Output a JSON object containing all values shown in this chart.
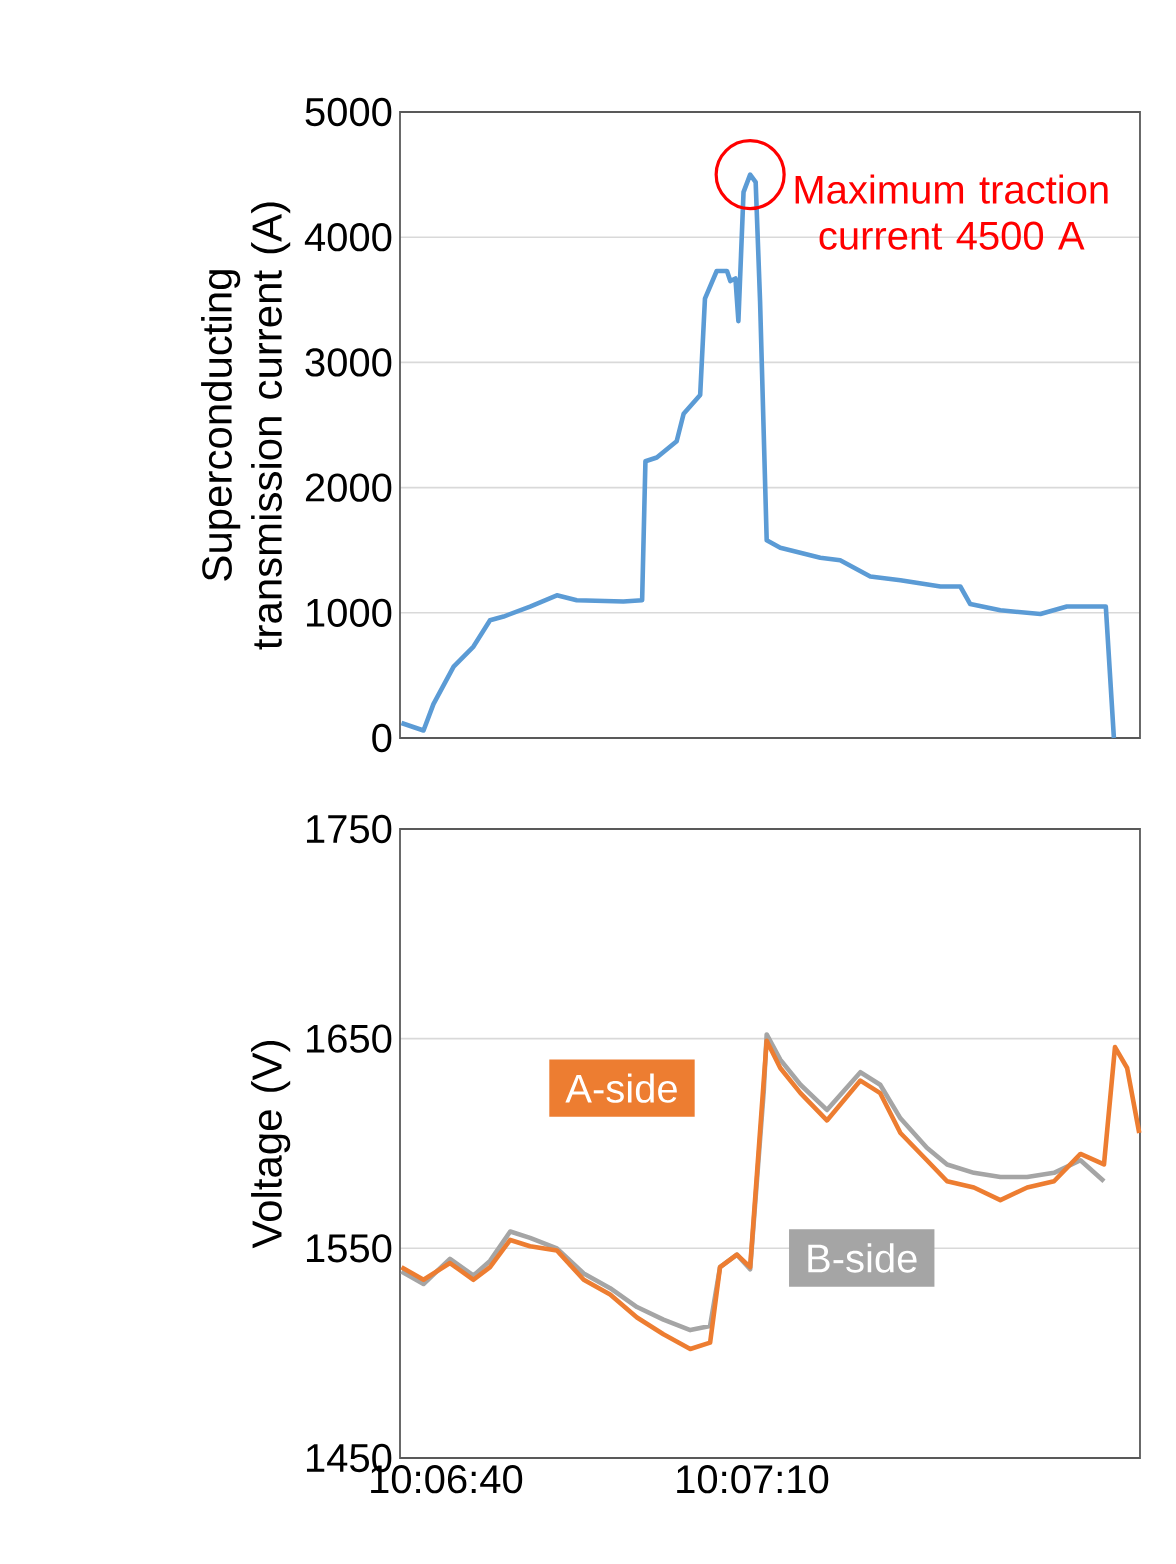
{
  "chart_data": [
    {
      "type": "line",
      "ylabel": "Superconducting transmission current (A)",
      "x": [
        10.1099,
        10.1105,
        10.11077,
        10.11132,
        10.11186,
        10.11231,
        10.11268,
        10.1134,
        10.11413,
        10.11467,
        10.11594,
        10.11645,
        10.11654,
        10.11685,
        10.11739,
        10.11758,
        10.11803,
        10.11816,
        10.11848,
        10.11876,
        10.11885,
        10.11899,
        10.11907,
        10.11921,
        10.11939,
        10.11954,
        10.11966,
        10.11984,
        10.12021,
        10.1213,
        10.12184,
        10.12266,
        10.12348,
        10.12457,
        10.12511,
        10.12538,
        10.1262,
        10.12729,
        10.12801,
        10.12907,
        10.12929
      ],
      "series": [
        {
          "color": "#5b9bd5",
          "values": [
            120,
            60,
            270,
            570,
            730,
            940,
            970,
            1050,
            1140,
            1100,
            1090,
            1100,
            2210,
            2240,
            2370,
            2590,
            2740,
            3510,
            3730,
            3730,
            3650,
            3670,
            3330,
            4360,
            4500,
            4440,
            3490,
            1580,
            1520,
            1440,
            1420,
            1290,
            1260,
            1210,
            1210,
            1070,
            1020,
            990,
            1050,
            1050,
            0
          ]
        }
      ],
      "xlim": [
        10.10986,
        10.13
      ],
      "ylim": [
        0,
        5000
      ],
      "yticks": [
        0,
        1000,
        2000,
        3000,
        4000,
        5000
      ],
      "grid": "y",
      "tick_labels": "y",
      "annotations": [
        {
          "text": "Maximum traction current 4500 A",
          "x": 10.11939,
          "y": 4500
        }
      ]
    },
    {
      "type": "line",
      "ylabel": "Voltage (V)",
      "x": [
        10.1099,
        10.1105,
        10.11122,
        10.11186,
        10.11231,
        10.11286,
        10.1134,
        10.11413,
        10.11486,
        10.11558,
        10.11631,
        10.11703,
        10.11776,
        10.1183,
        10.11857,
        10.11903,
        10.11939,
        10.11976,
        10.11984,
        10.12021,
        10.12076,
        10.12148,
        10.12239,
        10.12293,
        10.12348,
        10.1242,
        10.12475,
        10.12548,
        10.1262,
        10.12693,
        10.12766,
        10.12838,
        10.12902,
        10.12932,
        10.12965,
        10.12998
      ],
      "series": [
        {
          "name": "B-side",
          "color": "#a5a5a5",
          "values": [
            1539,
            1533,
            1545,
            1537,
            1544,
            1558,
            1555,
            1550,
            1538,
            1531,
            1522,
            1516,
            1511,
            1513,
            1541,
            1547,
            1540,
            1625,
            1652,
            1640,
            1628,
            1616,
            1634,
            1628,
            1612,
            1598,
            1590,
            1586,
            1584,
            1584,
            1586,
            1592,
            1582,
            null,
            null,
            null
          ]
        },
        {
          "name": "A-side",
          "color": "#ed7d31",
          "values": [
            1541,
            1535,
            1543,
            1535,
            1541,
            1554,
            1551,
            1549,
            1535,
            1528,
            1517,
            1509,
            1502,
            1505,
            1541,
            1547,
            1541,
            1630,
            1649,
            1636,
            1624,
            1611,
            1630,
            1624,
            1605,
            1592,
            1582,
            1579,
            1573,
            1579,
            1582,
            1595,
            1590,
            1646,
            1636,
            1605
          ]
        }
      ],
      "xlim": [
        10.10986,
        10.13
      ],
      "ylim": [
        1450,
        1750
      ],
      "yticks": [
        1450,
        1550,
        1650,
        1750
      ],
      "xticks": [
        {
          "value": 10.11111,
          "label": "10:06:40"
        },
        {
          "value": 10.11944,
          "label": "10:07:10"
        }
      ],
      "grid": "y"
    }
  ]
}
